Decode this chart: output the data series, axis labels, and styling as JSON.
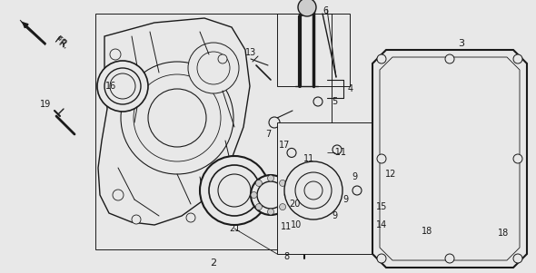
{
  "bg_color": "#e8e8e8",
  "line_color": "#1a1a1a",
  "fig_width": 5.9,
  "fig_height": 3.01,
  "dpi": 100,
  "white": "#ffffff",
  "gray_light": "#cccccc",
  "gray_mid": "#999999"
}
